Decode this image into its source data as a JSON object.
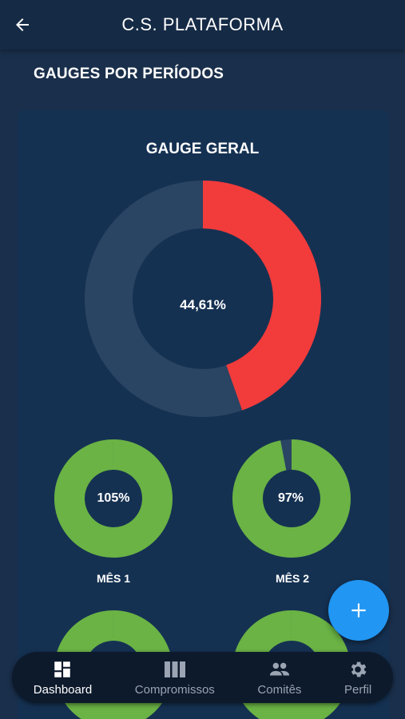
{
  "colors": {
    "background": "#1a2f4b",
    "card": "#153152",
    "track": "#2a4463",
    "red": "#f23b3b",
    "green": "#6ab344",
    "fab": "#2196f3"
  },
  "appbar": {
    "title": "C.S. PLATAFORMA",
    "back_icon": "arrow-left-icon"
  },
  "section": {
    "title": "GAUGES POR PERÍODOS"
  },
  "gauge_geral": {
    "title": "GAUGE GERAL",
    "value_label": "44,61%",
    "value": 44.61
  },
  "gauges": [
    {
      "label": "MÊS 1",
      "value_label": "105%",
      "value": 105
    },
    {
      "label": "MÊS 2",
      "value_label": "97%",
      "value": 97
    },
    {
      "label": "",
      "value_label": "",
      "value": 100
    },
    {
      "label": "",
      "value_label": "",
      "value": 100
    }
  ],
  "fab": {
    "icon": "plus-icon"
  },
  "bottom_nav": {
    "items": [
      {
        "label": "Dashboard",
        "icon": "dashboard-icon",
        "active": true
      },
      {
        "label": "Compromissos",
        "icon": "columns-icon",
        "active": false
      },
      {
        "label": "Comitês",
        "icon": "group-icon",
        "active": false
      },
      {
        "label": "Perfil",
        "icon": "gear-icon",
        "active": false
      }
    ]
  }
}
